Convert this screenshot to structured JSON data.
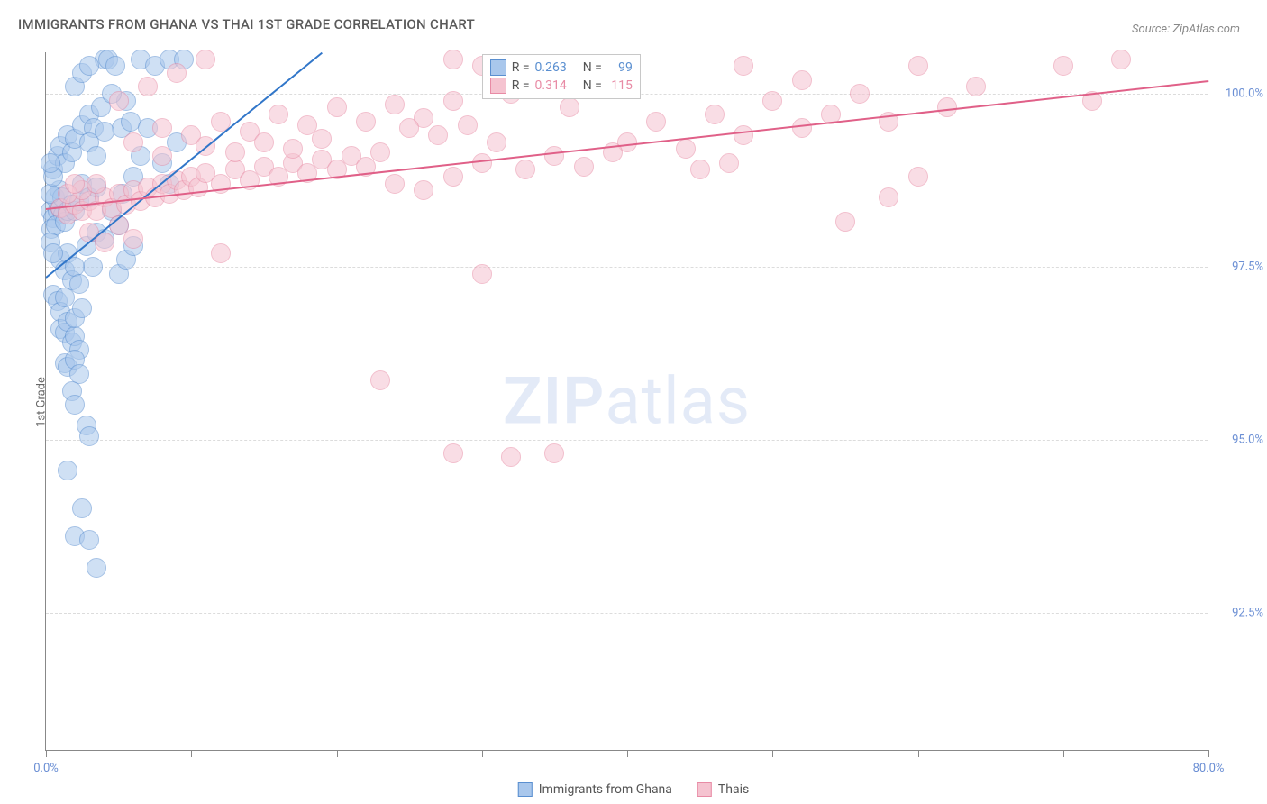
{
  "title": "IMMIGRANTS FROM GHANA VS THAI 1ST GRADE CORRELATION CHART",
  "source": "Source: ZipAtlas.com",
  "y_axis_label": "1st Grade",
  "watermark_a": "ZIP",
  "watermark_b": "atlas",
  "chart": {
    "type": "scatter",
    "xlim": [
      0,
      80
    ],
    "ylim": [
      90.5,
      100.6
    ],
    "x_ticks": [
      0,
      10,
      20,
      30,
      40,
      50,
      60,
      70,
      80
    ],
    "x_tick_labels": {
      "0": "0.0%",
      "80": "80.0%"
    },
    "y_gridlines": [
      92.5,
      95.0,
      97.5,
      100.0
    ],
    "y_tick_labels": {
      "92.5": "92.5%",
      "95.0": "95.0%",
      "97.5": "97.5%",
      "100.0": "100.0%"
    },
    "grid_color": "#dcdcdc",
    "axis_color": "#888888",
    "background_color": "#ffffff",
    "marker_radius": 11,
    "marker_opacity": 0.55,
    "series": [
      {
        "name": "Immigrants from Ghana",
        "color_fill": "#a9c7ec",
        "color_stroke": "#5a8fd0",
        "R": "0.263",
        "N": "99",
        "trend": {
          "x1": 0,
          "y1": 97.35,
          "x2": 19,
          "y2": 100.6,
          "color": "#3176c9",
          "width": 2
        },
        "points": [
          [
            0.3,
            98.3
          ],
          [
            0.5,
            98.2
          ],
          [
            0.8,
            98.3
          ],
          [
            1.0,
            98.35
          ],
          [
            1.2,
            98.25
          ],
          [
            0.6,
            98.5
          ],
          [
            0.9,
            98.6
          ],
          [
            1.1,
            98.5
          ],
          [
            0.4,
            98.05
          ],
          [
            0.7,
            98.1
          ],
          [
            1.3,
            98.15
          ],
          [
            1.5,
            98.3
          ],
          [
            1.8,
            98.4
          ],
          [
            2.0,
            98.3
          ],
          [
            2.3,
            98.45
          ],
          [
            0.5,
            98.9
          ],
          [
            0.8,
            99.1
          ],
          [
            1.0,
            99.25
          ],
          [
            1.3,
            99.0
          ],
          [
            1.5,
            99.4
          ],
          [
            1.8,
            99.15
          ],
          [
            2.0,
            99.35
          ],
          [
            2.5,
            99.55
          ],
          [
            3.0,
            99.7
          ],
          [
            3.3,
            99.5
          ],
          [
            3.8,
            99.8
          ],
          [
            4.0,
            100.5
          ],
          [
            4.3,
            100.5
          ],
          [
            4.8,
            100.4
          ],
          [
            5.2,
            99.5
          ],
          [
            5.5,
            99.9
          ],
          [
            6.5,
            100.5
          ],
          [
            7.5,
            100.4
          ],
          [
            8.5,
            100.5
          ],
          [
            9.0,
            99.3
          ],
          [
            9.5,
            100.5
          ],
          [
            2.8,
            97.8
          ],
          [
            3.2,
            97.5
          ],
          [
            3.5,
            98.0
          ],
          [
            4.0,
            97.9
          ],
          [
            4.5,
            98.3
          ],
          [
            5.0,
            98.1
          ],
          [
            5.3,
            98.55
          ],
          [
            1.0,
            97.6
          ],
          [
            1.3,
            97.45
          ],
          [
            1.5,
            97.7
          ],
          [
            1.8,
            97.3
          ],
          [
            2.0,
            97.5
          ],
          [
            2.3,
            97.25
          ],
          [
            0.5,
            97.1
          ],
          [
            0.8,
            97.0
          ],
          [
            1.0,
            96.85
          ],
          [
            1.3,
            97.05
          ],
          [
            1.0,
            96.6
          ],
          [
            1.3,
            96.55
          ],
          [
            1.5,
            96.7
          ],
          [
            1.8,
            96.4
          ],
          [
            2.0,
            96.5
          ],
          [
            2.3,
            96.3
          ],
          [
            2.0,
            96.75
          ],
          [
            2.5,
            96.9
          ],
          [
            1.3,
            96.1
          ],
          [
            1.5,
            96.05
          ],
          [
            2.0,
            96.15
          ],
          [
            2.3,
            95.95
          ],
          [
            1.8,
            95.7
          ],
          [
            2.0,
            95.5
          ],
          [
            2.8,
            95.2
          ],
          [
            3.0,
            95.05
          ],
          [
            1.5,
            94.55
          ],
          [
            2.5,
            94.0
          ],
          [
            2.0,
            93.6
          ],
          [
            3.0,
            93.55
          ],
          [
            3.5,
            93.15
          ],
          [
            4.5,
            100.0
          ],
          [
            5.8,
            99.6
          ],
          [
            6.0,
            98.8
          ],
          [
            6.5,
            99.1
          ],
          [
            7.0,
            99.5
          ],
          [
            5.0,
            97.4
          ],
          [
            5.5,
            97.6
          ],
          [
            6.0,
            97.8
          ],
          [
            3.0,
            99.3
          ],
          [
            3.5,
            99.1
          ],
          [
            4.0,
            99.45
          ],
          [
            2.5,
            98.7
          ],
          [
            3.0,
            98.5
          ],
          [
            3.5,
            98.65
          ],
          [
            8.0,
            99.0
          ],
          [
            8.5,
            98.7
          ],
          [
            0.3,
            97.85
          ],
          [
            0.5,
            97.7
          ],
          [
            0.3,
            98.55
          ],
          [
            0.5,
            98.8
          ],
          [
            0.3,
            99.0
          ],
          [
            2.0,
            100.1
          ],
          [
            2.5,
            100.3
          ],
          [
            3.0,
            100.4
          ]
        ]
      },
      {
        "name": "Thais",
        "color_fill": "#f5c3d0",
        "color_stroke": "#e88ba5",
        "R": "0.314",
        "N": "115",
        "trend": {
          "x1": 0,
          "y1": 98.35,
          "x2": 80,
          "y2": 100.2,
          "color": "#e06088",
          "width": 2
        },
        "points": [
          [
            1.0,
            98.35
          ],
          [
            1.5,
            98.25
          ],
          [
            2.0,
            98.4
          ],
          [
            2.5,
            98.3
          ],
          [
            3.0,
            98.45
          ],
          [
            3.5,
            98.3
          ],
          [
            4.0,
            98.5
          ],
          [
            4.5,
            98.35
          ],
          [
            5.0,
            98.55
          ],
          [
            5.5,
            98.4
          ],
          [
            6.0,
            98.6
          ],
          [
            6.5,
            98.45
          ],
          [
            7.0,
            98.65
          ],
          [
            7.5,
            98.5
          ],
          [
            8.0,
            98.7
          ],
          [
            8.5,
            98.55
          ],
          [
            9.0,
            98.75
          ],
          [
            9.5,
            98.6
          ],
          [
            10.0,
            98.8
          ],
          [
            10.5,
            98.65
          ],
          [
            11,
            98.85
          ],
          [
            12,
            98.7
          ],
          [
            13,
            98.9
          ],
          [
            14,
            98.75
          ],
          [
            15,
            98.95
          ],
          [
            16,
            98.8
          ],
          [
            17,
            99.0
          ],
          [
            18,
            98.85
          ],
          [
            19,
            99.05
          ],
          [
            20,
            98.9
          ],
          [
            21,
            99.1
          ],
          [
            22,
            98.95
          ],
          [
            23,
            99.15
          ],
          [
            6,
            99.3
          ],
          [
            8,
            99.5
          ],
          [
            10,
            99.4
          ],
          [
            12,
            99.6
          ],
          [
            14,
            99.45
          ],
          [
            16,
            99.7
          ],
          [
            18,
            99.55
          ],
          [
            20,
            99.8
          ],
          [
            22,
            99.6
          ],
          [
            24,
            99.85
          ],
          [
            26,
            99.65
          ],
          [
            28,
            99.9
          ],
          [
            8,
            99.1
          ],
          [
            11,
            99.25
          ],
          [
            13,
            99.15
          ],
          [
            15,
            99.3
          ],
          [
            17,
            99.2
          ],
          [
            19,
            99.35
          ],
          [
            24,
            98.7
          ],
          [
            26,
            98.6
          ],
          [
            28,
            98.8
          ],
          [
            30,
            99.0
          ],
          [
            25,
            99.5
          ],
          [
            27,
            99.4
          ],
          [
            29,
            99.55
          ],
          [
            31,
            99.3
          ],
          [
            30,
            100.4
          ],
          [
            32,
            100.0
          ],
          [
            34,
            100.2
          ],
          [
            36,
            99.8
          ],
          [
            38,
            100.4
          ],
          [
            28,
            100.5
          ],
          [
            40,
            99.3
          ],
          [
            42,
            99.6
          ],
          [
            44,
            99.2
          ],
          [
            46,
            99.7
          ],
          [
            48,
            99.4
          ],
          [
            50,
            99.9
          ],
          [
            52,
            99.5
          ],
          [
            48,
            100.4
          ],
          [
            52,
            100.2
          ],
          [
            54,
            99.7
          ],
          [
            56,
            100.0
          ],
          [
            58,
            99.6
          ],
          [
            60,
            100.4
          ],
          [
            62,
            99.8
          ],
          [
            64,
            100.1
          ],
          [
            55,
            98.15
          ],
          [
            58,
            98.5
          ],
          [
            60,
            98.8
          ],
          [
            70,
            100.4
          ],
          [
            72,
            99.9
          ],
          [
            74,
            100.5
          ],
          [
            30,
            97.4
          ],
          [
            12,
            97.7
          ],
          [
            23,
            95.85
          ],
          [
            28,
            94.8
          ],
          [
            32,
            94.75
          ],
          [
            35,
            94.8
          ],
          [
            5,
            99.9
          ],
          [
            7,
            100.1
          ],
          [
            9,
            100.3
          ],
          [
            11,
            100.5
          ],
          [
            3,
            98.0
          ],
          [
            4,
            97.85
          ],
          [
            5,
            98.1
          ],
          [
            6,
            97.9
          ],
          [
            33,
            98.9
          ],
          [
            35,
            99.1
          ],
          [
            37,
            98.95
          ],
          [
            39,
            99.15
          ],
          [
            45,
            98.9
          ],
          [
            47,
            99.0
          ],
          [
            2.5,
            98.6
          ],
          [
            3.5,
            98.7
          ],
          [
            1.5,
            98.55
          ],
          [
            2.0,
            98.7
          ]
        ]
      }
    ]
  },
  "stats_box": {
    "rows": [
      {
        "series": 0,
        "R_label": "R =",
        "N_label": "N ="
      },
      {
        "series": 1,
        "R_label": "R =",
        "N_label": "N ="
      }
    ]
  },
  "legend": {
    "items": [
      {
        "series": 0
      },
      {
        "series": 1
      }
    ]
  }
}
